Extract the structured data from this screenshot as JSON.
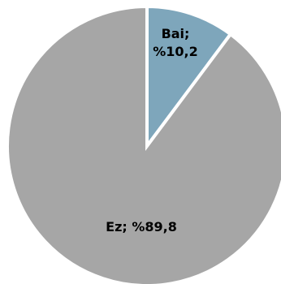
{
  "chart_data": {
    "type": "pie",
    "title": "",
    "legend": "none",
    "start_angle_deg": 0,
    "direction": "clockwise",
    "slices": [
      {
        "category": "Bai",
        "value": 10.2,
        "label_lines": [
          "Bai;",
          "%10,2"
        ],
        "color": "#7ea6bb"
      },
      {
        "category": "Ez",
        "value": 89.8,
        "label_lines": [
          "Ez; %89,8"
        ],
        "color": "#a6a6a6"
      }
    ]
  }
}
